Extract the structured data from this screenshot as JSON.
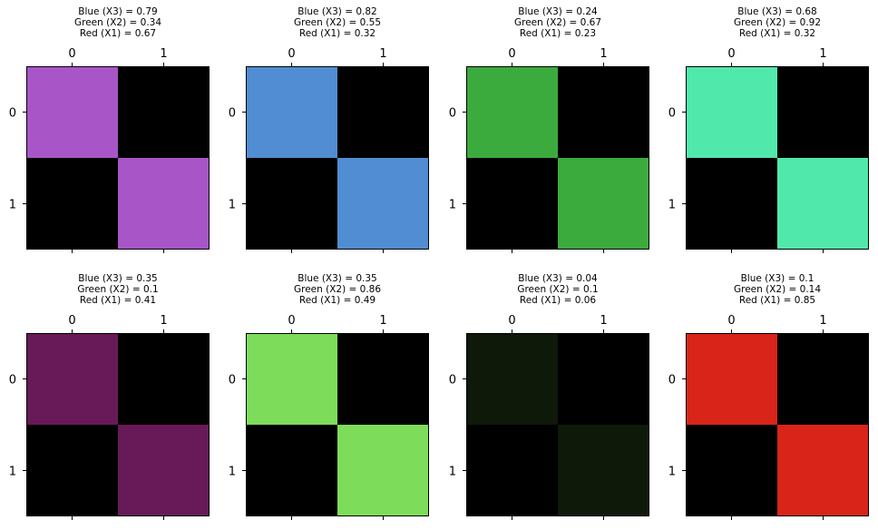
{
  "chart_data": [
    {
      "type": "heatmap",
      "title_lines": [
        "Blue (X3) = 0.79",
        "Green (X2) = 0.34",
        "Red (X1) = 0.67"
      ],
      "x_ticks": [
        "0",
        "1"
      ],
      "y_ticks": [
        "0",
        "1"
      ],
      "cells": [
        [
          "#a855c8",
          "#000000"
        ],
        [
          "#000000",
          "#a855c8"
        ]
      ]
    },
    {
      "type": "heatmap",
      "title_lines": [
        "Blue (X3) = 0.82",
        "Green (X2) = 0.55",
        "Red (X1) = 0.32"
      ],
      "x_ticks": [
        "0",
        "1"
      ],
      "y_ticks": [
        "0",
        "1"
      ],
      "cells": [
        [
          "#518dd2",
          "#000000"
        ],
        [
          "#000000",
          "#518dd2"
        ]
      ]
    },
    {
      "type": "heatmap",
      "title_lines": [
        "Blue (X3) = 0.24",
        "Green (X2) = 0.67",
        "Red (X1) = 0.23"
      ],
      "x_ticks": [
        "0",
        "1"
      ],
      "y_ticks": [
        "0",
        "1"
      ],
      "cells": [
        [
          "#3bab3d",
          "#000000"
        ],
        [
          "#000000",
          "#3bab3d"
        ]
      ]
    },
    {
      "type": "heatmap",
      "title_lines": [
        "Blue (X3) = 0.68",
        "Green (X2) = 0.92",
        "Red (X1) = 0.32"
      ],
      "x_ticks": [
        "0",
        "1"
      ],
      "y_ticks": [
        "0",
        "1"
      ],
      "cells": [
        [
          "#51e8ac",
          "#000000"
        ],
        [
          "#000000",
          "#51e8ac"
        ]
      ]
    },
    {
      "type": "heatmap",
      "title_lines": [
        "Blue (X3) = 0.35",
        "Green (X2) = 0.1",
        "Red (X1) = 0.41"
      ],
      "x_ticks": [
        "0",
        "1"
      ],
      "y_ticks": [
        "0",
        "1"
      ],
      "cells": [
        [
          "#671a57",
          "#000000"
        ],
        [
          "#000000",
          "#671a57"
        ]
      ]
    },
    {
      "type": "heatmap",
      "title_lines": [
        "Blue (X3) = 0.35",
        "Green (X2) = 0.86",
        "Red (X1) = 0.49"
      ],
      "x_ticks": [
        "0",
        "1"
      ],
      "y_ticks": [
        "0",
        "1"
      ],
      "cells": [
        [
          "#7ddc5a",
          "#000000"
        ],
        [
          "#000000",
          "#7ddc5a"
        ]
      ]
    },
    {
      "type": "heatmap",
      "title_lines": [
        "Blue (X3) = 0.04",
        "Green (X2) = 0.1",
        "Red (X1) = 0.06"
      ],
      "x_ticks": [
        "0",
        "1"
      ],
      "y_ticks": [
        "0",
        "1"
      ],
      "cells": [
        [
          "#0f190a",
          "#000000"
        ],
        [
          "#000000",
          "#0f190a"
        ]
      ]
    },
    {
      "type": "heatmap",
      "title_lines": [
        "Blue (X3) = 0.1",
        "Green (X2) = 0.14",
        "Red (X1) = 0.85"
      ],
      "x_ticks": [
        "0",
        "1"
      ],
      "y_ticks": [
        "0",
        "1"
      ],
      "cells": [
        [
          "#d92419",
          "#000000"
        ],
        [
          "#000000",
          "#d92419"
        ]
      ]
    }
  ]
}
